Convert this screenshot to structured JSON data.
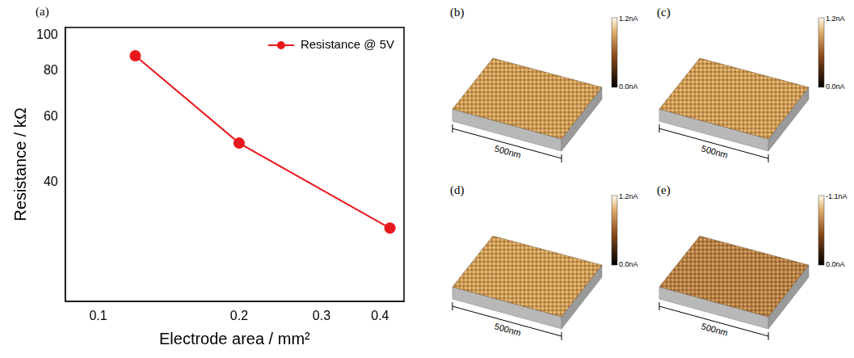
{
  "chart_data": {
    "type": "line",
    "chart_label": "(a)",
    "x_label": "Electrode area / mm²",
    "y_label": "Resistance / kΩ",
    "log": true,
    "grid": false,
    "legend": "upper right",
    "x": [
      0.12,
      0.2,
      0.42
    ],
    "series": [
      {
        "name": "Resistance @ 5V",
        "color": "#e8191c",
        "marker": "circle",
        "line_style": "solid",
        "values": [
          88,
          51,
          30
        ]
      }
    ],
    "xlim": [
      0.085,
      0.45
    ],
    "xticks": [
      0.1,
      0.2,
      0.3,
      0.4
    ],
    "ylim": [
      19,
      105
    ],
    "yticks": [
      40,
      60,
      80,
      100
    ]
  },
  "panels": [
    {
      "label": "(b)",
      "scale_bar": "500nm",
      "colorbar": {
        "max_label": "1.2nA",
        "min_label": "0.0nA"
      }
    },
    {
      "label": "(c)",
      "scale_bar": "500nm",
      "colorbar": {
        "max_label": "1.2nA",
        "min_label": "0.0nA"
      }
    },
    {
      "label": "(d)",
      "scale_bar": "500nm",
      "colorbar": {
        "max_label": "1.2nA",
        "min_label": "0.0nA"
      }
    },
    {
      "label": "(e)",
      "scale_bar": "500nm",
      "colorbar": {
        "max_label": "-1.1nA",
        "min_label": "0.0nA"
      }
    }
  ]
}
